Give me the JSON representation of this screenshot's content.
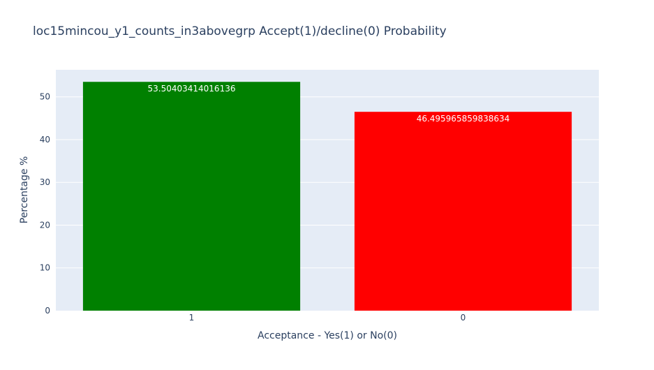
{
  "chart_data": {
    "type": "bar",
    "title": "loc15mincou_y1_counts_in3abovegrp Accept(1)/decline(0) Probability",
    "xlabel": "Acceptance - Yes(1) or No(0)",
    "ylabel": "Percentage %",
    "categories": [
      "1",
      "0"
    ],
    "values": [
      53.50403414016136,
      46.495965859838634
    ],
    "data_labels": [
      "53.50403414016136",
      "46.495965859838634"
    ],
    "bar_colors": [
      "#008000",
      "#ff0000"
    ],
    "ylim": [
      0,
      56.32
    ],
    "yticks": [
      0,
      10,
      20,
      30,
      40,
      50
    ],
    "ytick_labels": [
      "0",
      "10",
      "20",
      "30",
      "40",
      "50"
    ],
    "grid": true,
    "legend": "none",
    "plot_background": "#e5ecf6"
  }
}
